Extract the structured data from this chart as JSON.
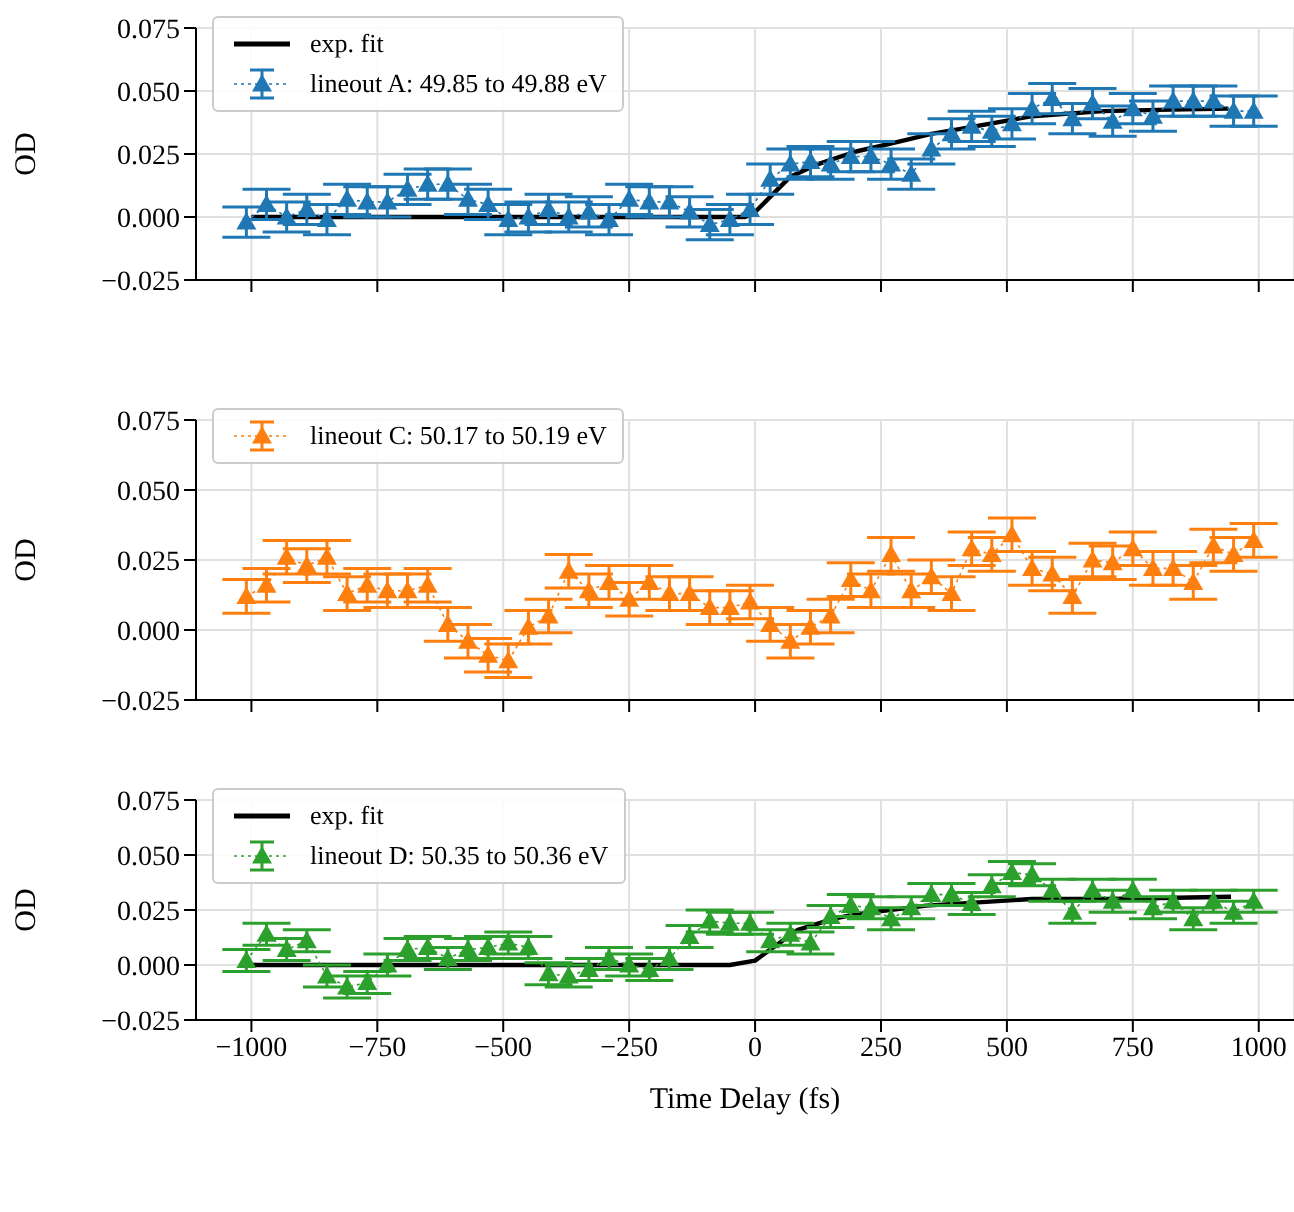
{
  "chart_data": [
    {
      "type": "line",
      "ylabel": "OD",
      "tick_labels": "y",
      "grid": true,
      "legend": "top left",
      "marker": "triangle",
      "line_style": "dotted",
      "xlim": [
        -1110,
        1070
      ],
      "xticks": [
        -1000,
        -750,
        -500,
        -250,
        0,
        250,
        500,
        750,
        1000
      ],
      "ylim": [
        -0.025,
        0.075
      ],
      "yticks": [
        {
          "value": -0.025,
          "label": "−0.025"
        },
        {
          "value": 0,
          "label": "0.000"
        },
        {
          "value": 0.025,
          "label": "0.025"
        },
        {
          "value": 0.05,
          "label": "0.050"
        },
        {
          "value": 0.075,
          "label": "0.075"
        }
      ],
      "x": [
        -1010,
        -970,
        -930,
        -890,
        -850,
        -810,
        -770,
        -730,
        -690,
        -650,
        -610,
        -570,
        -530,
        -490,
        -450,
        -410,
        -370,
        -330,
        -290,
        -250,
        -210,
        -170,
        -130,
        -90,
        -50,
        -10,
        30,
        70,
        110,
        150,
        190,
        230,
        270,
        310,
        350,
        390,
        430,
        470,
        510,
        550,
        590,
        630,
        670,
        710,
        750,
        790,
        830,
        870,
        910,
        950,
        990
      ],
      "series": [
        {
          "name": "exp. fit",
          "type": "line",
          "marker": "none",
          "line_style": "solid",
          "color": "#000000",
          "x": [
            -1000,
            -20,
            0,
            30,
            70,
            125,
            200,
            267,
            350,
            408,
            550,
            691,
            800,
            940
          ],
          "values": [
            0,
            0,
            0.002,
            0.008,
            0.016,
            0.021,
            0.026,
            0.029,
            0.033,
            0.035,
            0.04,
            0.042,
            0.0425,
            0.043
          ]
        },
        {
          "name": "lineout A: 49.85 to 49.88 eV",
          "color": "#1f77b4",
          "errors": [
            0.006,
            0.006,
            0.006,
            0.006,
            0.006,
            0.006,
            0.006,
            0.006,
            0.006,
            0.006,
            0.006,
            0.006,
            0.006,
            0.006,
            0.006,
            0.006,
            0.006,
            0.006,
            0.006,
            0.006,
            0.006,
            0.006,
            0.006,
            0.006,
            0.006,
            0.006,
            0.006,
            0.006,
            0.006,
            0.006,
            0.006,
            0.006,
            0.006,
            0.006,
            0.006,
            0.006,
            0.006,
            0.006,
            0.006,
            0.006,
            0.006,
            0.006,
            0.006,
            0.006,
            0.006,
            0.006,
            0.006,
            0.006,
            0.006,
            0.006,
            0.006
          ],
          "values": [
            -0.002,
            0.005,
            0,
            0.003,
            -0.001,
            0.007,
            0.006,
            0.006,
            0.011,
            0.013,
            0.013,
            0.007,
            0.005,
            -0.001,
            0,
            0.003,
            0,
            0.002,
            -0.001,
            0.007,
            0.006,
            0.006,
            0.002,
            -0.003,
            -0.001,
            0.003,
            0.015,
            0.021,
            0.022,
            0.021,
            0.024,
            0.024,
            0.021,
            0.017,
            0.027,
            0.033,
            0.036,
            0.034,
            0.037,
            0.043,
            0.047,
            0.039,
            0.045,
            0.038,
            0.043,
            0.04,
            0.046,
            0.046,
            0.046,
            0.042,
            0.042
          ]
        }
      ]
    },
    {
      "type": "line",
      "ylabel": "OD",
      "tick_labels": "y",
      "grid": true,
      "legend": "top left",
      "marker": "triangle",
      "line_style": "dotted",
      "xlim": [
        -1110,
        1070
      ],
      "xticks": [
        -1000,
        -750,
        -500,
        -250,
        0,
        250,
        500,
        750,
        1000
      ],
      "ylim": [
        -0.025,
        0.075
      ],
      "yticks": [
        {
          "value": -0.025,
          "label": "−0.025"
        },
        {
          "value": 0,
          "label": "0.000"
        },
        {
          "value": 0.025,
          "label": "0.025"
        },
        {
          "value": 0.05,
          "label": "0.050"
        },
        {
          "value": 0.075,
          "label": "0.075"
        }
      ],
      "x": [
        -1010,
        -970,
        -930,
        -890,
        -850,
        -810,
        -770,
        -730,
        -690,
        -650,
        -610,
        -570,
        -530,
        -490,
        -450,
        -410,
        -370,
        -330,
        -290,
        -250,
        -210,
        -170,
        -130,
        -90,
        -50,
        -10,
        30,
        70,
        110,
        150,
        190,
        230,
        270,
        310,
        350,
        390,
        430,
        470,
        510,
        550,
        590,
        630,
        670,
        710,
        750,
        790,
        830,
        870,
        910,
        950,
        990
      ],
      "series": [
        {
          "name": "lineout C: 50.17 to 50.19 eV",
          "color": "#ff7f0e",
          "errors": [
            0.006,
            0.006,
            0.006,
            0.006,
            0.006,
            0.006,
            0.006,
            0.006,
            0.006,
            0.006,
            0.006,
            0.006,
            0.006,
            0.006,
            0.006,
            0.006,
            0.006,
            0.006,
            0.006,
            0.006,
            0.006,
            0.006,
            0.006,
            0.006,
            0.006,
            0.006,
            0.006,
            0.006,
            0.006,
            0.006,
            0.006,
            0.006,
            0.006,
            0.006,
            0.006,
            0.006,
            0.006,
            0.006,
            0.006,
            0.006,
            0.006,
            0.006,
            0.006,
            0.006,
            0.006,
            0.006,
            0.006,
            0.006,
            0.006,
            0.006,
            0.006
          ],
          "values": [
            0.012,
            0.016,
            0.026,
            0.023,
            0.026,
            0.013,
            0.016,
            0.014,
            0.014,
            0.016,
            0.002,
            -0.004,
            -0.009,
            -0.011,
            0.001,
            0.005,
            0.021,
            0.014,
            0.017,
            0.011,
            0.017,
            0.013,
            0.013,
            0.008,
            0.008,
            0.01,
            0.002,
            -0.004,
            0.001,
            0.005,
            0.018,
            0.014,
            0.027,
            0.014,
            0.019,
            0.013,
            0.029,
            0.027,
            0.034,
            0.022,
            0.02,
            0.012,
            0.025,
            0.024,
            0.029,
            0.022,
            0.022,
            0.017,
            0.03,
            0.027,
            0.032
          ]
        }
      ]
    },
    {
      "type": "line",
      "ylabel": "OD",
      "xlabel": "Time Delay (fs)",
      "grid": true,
      "legend": "top left",
      "marker": "triangle",
      "line_style": "dotted",
      "xlim": [
        -1110,
        1070
      ],
      "xticks": [
        {
          "value": -1000,
          "label": "−1000"
        },
        {
          "value": -750,
          "label": "−750"
        },
        {
          "value": -500,
          "label": "−500"
        },
        {
          "value": -250,
          "label": "−250"
        },
        {
          "value": 0,
          "label": "0"
        },
        {
          "value": 250,
          "label": "250"
        },
        {
          "value": 500,
          "label": "500"
        },
        {
          "value": 750,
          "label": "750"
        },
        {
          "value": 1000,
          "label": "1000"
        }
      ],
      "ylim": [
        -0.025,
        0.075
      ],
      "yticks": [
        {
          "value": -0.025,
          "label": "−0.025"
        },
        {
          "value": 0,
          "label": "0.000"
        },
        {
          "value": 0.025,
          "label": "0.025"
        },
        {
          "value": 0.05,
          "label": "0.050"
        },
        {
          "value": 0.075,
          "label": "0.075"
        }
      ],
      "x": [
        -1010,
        -970,
        -930,
        -890,
        -850,
        -810,
        -770,
        -730,
        -690,
        -650,
        -610,
        -570,
        -530,
        -490,
        -450,
        -410,
        -370,
        -330,
        -290,
        -250,
        -210,
        -170,
        -130,
        -90,
        -50,
        -10,
        30,
        70,
        110,
        150,
        190,
        230,
        270,
        310,
        350,
        390,
        430,
        470,
        510,
        550,
        590,
        630,
        670,
        710,
        750,
        790,
        830,
        870,
        910,
        950,
        990
      ],
      "series": [
        {
          "name": "exp. fit",
          "type": "line",
          "marker": "none",
          "line_style": "solid",
          "color": "#000000",
          "x": [
            -1000,
            -50,
            0,
            42,
            85,
            155,
            198,
            340,
            550,
            700,
            945
          ],
          "values": [
            0,
            0,
            0.002,
            0.009,
            0.016,
            0.021,
            0.023,
            0.027,
            0.03,
            0.03,
            0.031
          ]
        },
        {
          "name": "lineout D: 50.35 to 50.36 eV",
          "color": "#2ca02c",
          "errors": [
            0.005,
            0.005,
            0.005,
            0.005,
            0.005,
            0.005,
            0.005,
            0.005,
            0.005,
            0.005,
            0.005,
            0.005,
            0.005,
            0.005,
            0.005,
            0.005,
            0.005,
            0.005,
            0.005,
            0.005,
            0.005,
            0.005,
            0.005,
            0.005,
            0.005,
            0.005,
            0.005,
            0.005,
            0.005,
            0.005,
            0.005,
            0.005,
            0.005,
            0.005,
            0.005,
            0.005,
            0.005,
            0.005,
            0.005,
            0.005,
            0.005,
            0.005,
            0.005,
            0.005,
            0.005,
            0.005,
            0.005,
            0.005,
            0.005,
            0.005,
            0.005
          ],
          "values": [
            0.002,
            0.014,
            0.007,
            0.011,
            -0.005,
            -0.01,
            -0.008,
            0,
            0.007,
            0.008,
            0.003,
            0.007,
            0.008,
            0.01,
            0.008,
            -0.004,
            -0.005,
            -0.002,
            0.003,
            0,
            -0.002,
            0.003,
            0.013,
            0.02,
            0.019,
            0.019,
            0.011,
            0.014,
            0.01,
            0.022,
            0.027,
            0.026,
            0.021,
            0.026,
            0.032,
            0.032,
            0.028,
            0.036,
            0.042,
            0.041,
            0.034,
            0.024,
            0.034,
            0.029,
            0.034,
            0.026,
            0.029,
            0.021,
            0.029,
            0.024,
            0.029
          ]
        }
      ]
    }
  ]
}
